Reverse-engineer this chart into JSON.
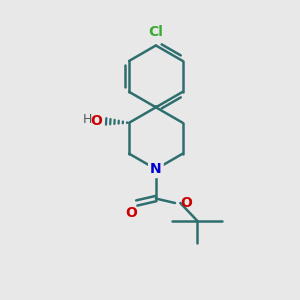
{
  "bg_color": "#e8e8e8",
  "atom_colors": {
    "C": "#000000",
    "N": "#0000cc",
    "O": "#cc0000",
    "Cl": "#3aaa35",
    "H": "#555555"
  },
  "bond_color": "#2e6e6e",
  "bond_lw": 1.8,
  "figsize": [
    3.0,
    3.0
  ],
  "dpi": 100
}
